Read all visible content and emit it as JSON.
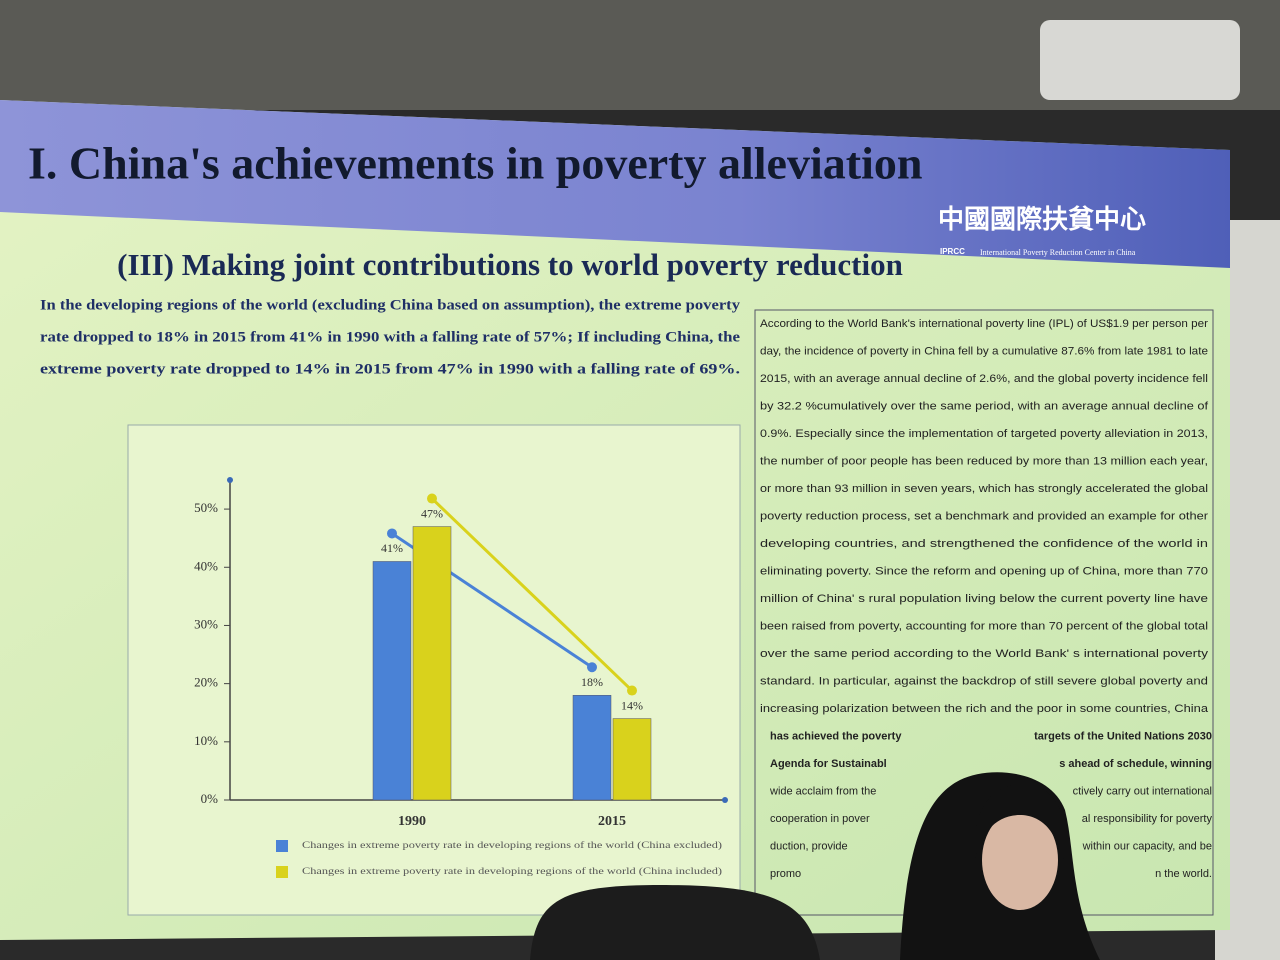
{
  "slide": {
    "title": "I. China's achievements in poverty alleviation",
    "subtitle": "(III) Making joint contributions to world poverty reduction",
    "logo": {
      "chinese": "中國國際扶貧中心",
      "english": "International Poverty Reduction Center in China",
      "abbr": "IPRCC"
    },
    "intro_lines": [
      "In the developing regions of the world (excluding China based on assumption), the extreme poverty",
      "rate dropped to 18% in 2015 from 41% in 1990 with a falling rate of 57%; If including China, the",
      "extreme poverty rate dropped to 14% in 2015 from 47% in 1990 with a falling rate of 69%."
    ],
    "text_box_lines": [
      [
        "According to the World Bank's international poverty line (IPL) of US$1.9 per person per"
      ],
      [
        "day, the incidence of poverty in China fell by a cumulative 87.6% from late 1981 to late"
      ],
      [
        "2015, with an average annual decline of 2.6%, and the global poverty incidence fell"
      ],
      [
        "by 32.2 %cumulatively over the same period, with an average annual decline of"
      ],
      [
        "0.9%. Especially since the implementation of targeted poverty alleviation in 2013,"
      ],
      [
        "the number of poor people has been reduced by more than 13 million each year,"
      ],
      [
        "or more than 93 million in seven years, which has strongly accelerated the global"
      ],
      [
        "poverty reduction process, set a benchmark and provided an example for other"
      ],
      [
        "developing countries, and strengthened the confidence of the world in"
      ],
      [
        "eliminating poverty. Since the reform and opening up of China, more than 770"
      ],
      [
        "million of China' s rural population living below the current poverty line have"
      ],
      [
        "been raised from poverty, accounting for more than 70 percent of the global total"
      ],
      [
        "over the same period according to the World Bank' s international poverty"
      ],
      [
        "standard. In particular, against the backdrop of still severe global poverty and"
      ],
      [
        "increasing polarization between the rich and the poor in some countries, China"
      ],
      [
        "has achieved the poverty",
        "targets of the United Nations 2030"
      ],
      [
        "Agenda for Sustainabl",
        "s ahead of schedule, winning"
      ],
      [
        "wide acclaim from the",
        "ctively carry out international"
      ],
      [
        "cooperation in pover",
        "al responsibility for poverty"
      ],
      [
        "duction, provide",
        "within our capacity, and be"
      ],
      [
        "promo",
        "n the world."
      ]
    ]
  },
  "chart_data": {
    "type": "bar",
    "categories": [
      "1990",
      "2015"
    ],
    "series": [
      {
        "name": "Changes in extreme poverty rate in developing regions of the world (China excluded)",
        "color": "#4a82d6",
        "values": [
          41,
          18
        ],
        "value_labels": [
          "41%",
          "18%"
        ]
      },
      {
        "name": "Changes in extreme poverty rate in developing regions of the world (China included)",
        "color": "#d9d21c",
        "values": [
          47,
          14
        ],
        "value_labels": [
          "47%",
          "14%"
        ]
      }
    ],
    "ylim": [
      0,
      55
    ],
    "yticks": [
      {
        "value": 0,
        "label": "0%"
      },
      {
        "value": 10,
        "label": "10%"
      },
      {
        "value": 20,
        "label": "20%"
      },
      {
        "value": 30,
        "label": "30%"
      },
      {
        "value": 40,
        "label": "40%"
      },
      {
        "value": 50,
        "label": "50%"
      }
    ]
  }
}
